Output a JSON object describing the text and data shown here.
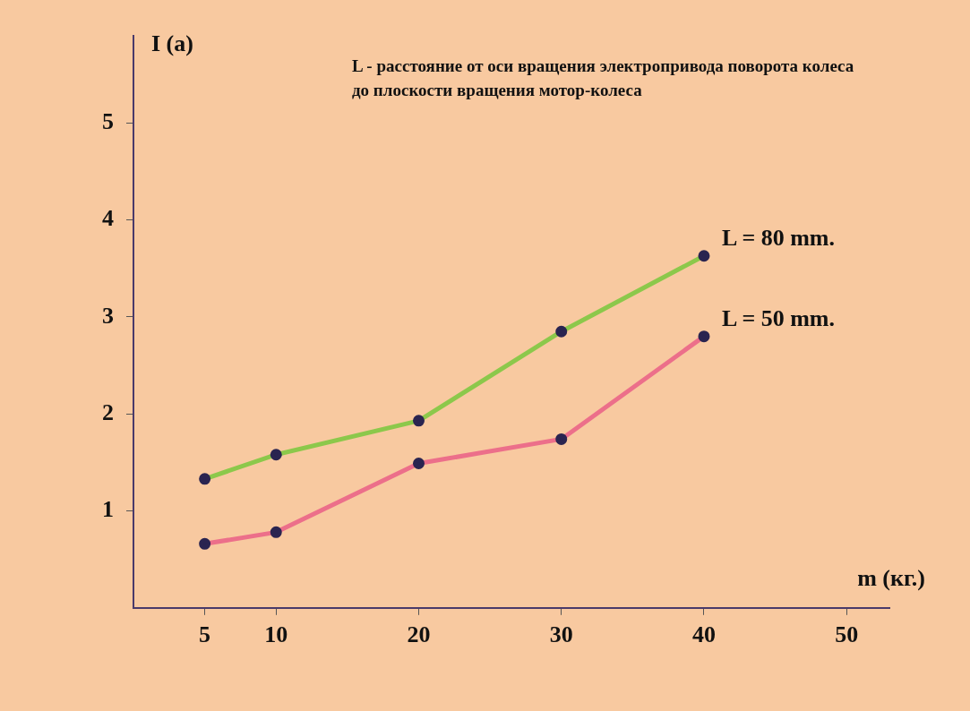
{
  "chart_data": {
    "type": "line",
    "xlabel": "m (кг.)",
    "ylabel": "I (a)",
    "annotations": [
      "L - расстояние от оси вращения электропривода поворота колеса до плоскости вращения мотор-колеса"
    ],
    "x": [
      5,
      10,
      20,
      30,
      40
    ],
    "series": [
      {
        "name": "L = 80 mm.",
        "color": "#8cc84b",
        "values": [
          1.33,
          1.58,
          1.93,
          2.85,
          3.63
        ]
      },
      {
        "name": "L = 50 mm.",
        "color": "#ec6f8a",
        "values": [
          0.66,
          0.78,
          1.49,
          1.74,
          2.8
        ]
      }
    ],
    "xlim": [
      0,
      53
    ],
    "xticks": [
      5,
      10,
      20,
      30,
      40,
      50
    ],
    "ylim": [
      0,
      5.9
    ],
    "yticks": [
      1,
      2,
      3,
      4,
      5
    ],
    "grid": false,
    "legend": false,
    "marker": "circle",
    "line_style": "solid"
  }
}
